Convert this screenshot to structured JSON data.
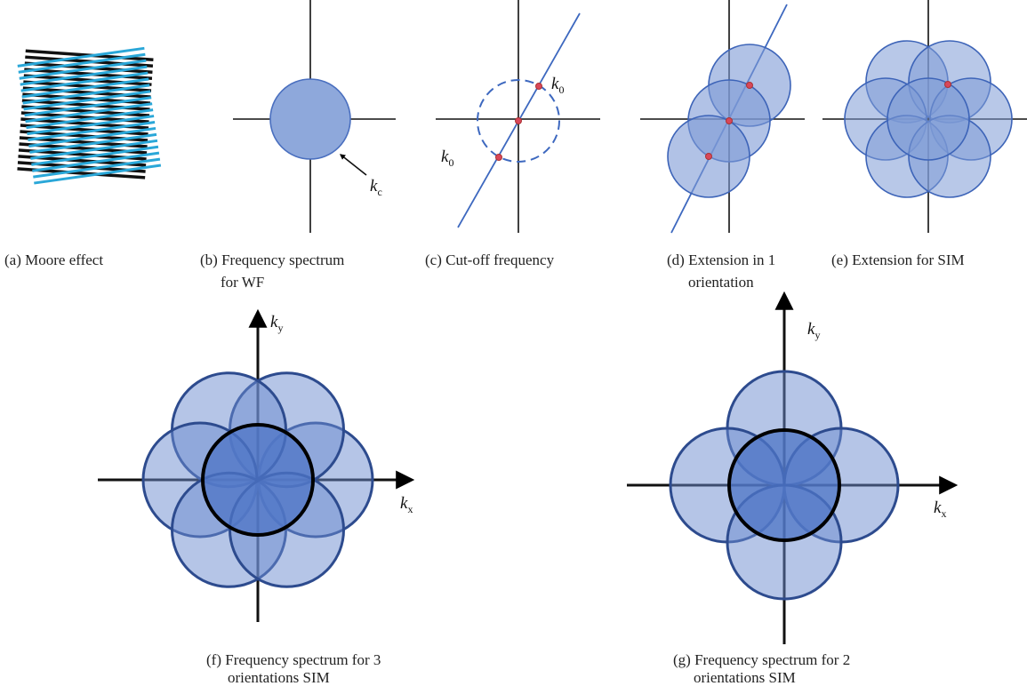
{
  "captions": {
    "a": [
      "(a) Moore effect"
    ],
    "b": [
      "(b) Frequency spectrum",
      "for WF"
    ],
    "c": [
      "(c) Cut-off frequency"
    ],
    "d": [
      "(d) Extension in 1",
      "orientation"
    ],
    "e": [
      "(e) Extension for SIM"
    ],
    "f": [
      "(f) Frequency spectrum for 3",
      "orientations SIM"
    ],
    "g": [
      "(g) Frequency spectrum for 2",
      "orientations SIM"
    ]
  },
  "labels": {
    "b_kc": {
      "symbol": "k",
      "subscript": "c"
    },
    "c_k0_upper": {
      "symbol": "k",
      "subscript": "0"
    },
    "c_k0_lower": {
      "symbol": "k",
      "subscript": "0"
    },
    "f_ky": {
      "symbol": "k",
      "subscript": "y"
    },
    "f_kx": {
      "symbol": "k",
      "subscript": "x"
    },
    "g_ky": {
      "symbol": "k",
      "subscript": "y"
    },
    "g_kx": {
      "symbol": "k",
      "subscript": "x"
    }
  }
}
